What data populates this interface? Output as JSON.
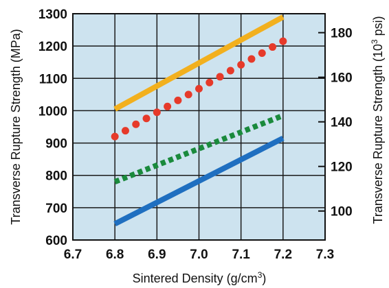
{
  "chart_data": {
    "type": "line",
    "title": "",
    "xlabel": "Sintered Density (g/cm",
    "xlabel_sup": "3",
    "xlabel_end": ")",
    "ylabel": "Transverse Rupture Strength (MPa)",
    "y2label": "Transverse Rupture Strength (10",
    "y2label_sup": "3",
    "y2label_end": " psi)",
    "xlim": [
      6.7,
      7.3
    ],
    "ylim": [
      600,
      1300
    ],
    "y2lim": [
      87.0,
      188.5
    ],
    "grid": true,
    "plot_background": "#cde3ef",
    "x_ticks": [
      "6.7",
      "6.8",
      "6.9",
      "7.0",
      "7.1",
      "7.2",
      "7.3"
    ],
    "y_ticks": [
      "600",
      "700",
      "800",
      "900",
      "1000",
      "1100",
      "1200",
      "1300"
    ],
    "y2_ticks": [
      "100",
      "120",
      "140",
      "160",
      "180"
    ],
    "series": [
      {
        "style": "solid",
        "color": "#f2b01e",
        "x": [
          6.8,
          7.2
        ],
        "values": [
          1005,
          1290
        ]
      },
      {
        "style": "dotted",
        "color": "#e63a2a",
        "x": [
          6.8,
          6.825,
          6.85,
          6.875,
          6.9,
          6.925,
          6.95,
          6.975,
          7.0,
          7.025,
          7.05,
          7.075,
          7.1,
          7.125,
          7.15,
          7.175,
          7.2
        ],
        "values": [
          920,
          938,
          958,
          976,
          995,
          1013,
          1032,
          1050,
          1068,
          1087,
          1105,
          1124,
          1142,
          1160,
          1178,
          1197,
          1215
        ]
      },
      {
        "style": "dashed",
        "color": "#1a8a3c",
        "x": [
          6.8,
          7.2
        ],
        "values": [
          780,
          985
        ]
      },
      {
        "style": "solid",
        "color": "#1f6fc0",
        "x": [
          6.8,
          7.2
        ],
        "values": [
          650,
          915
        ]
      }
    ]
  }
}
